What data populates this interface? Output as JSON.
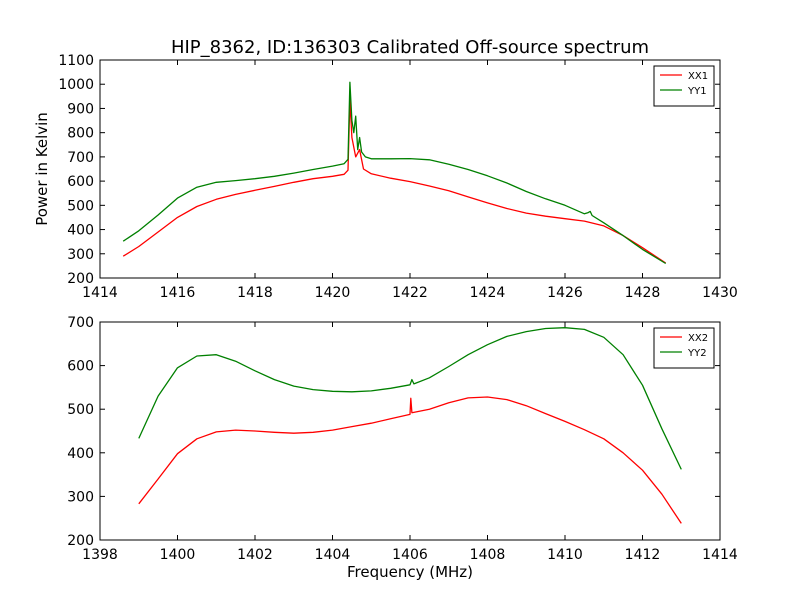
{
  "chart_data": [
    {
      "type": "line",
      "title": "HIP_8362, ID:136303 Calibrated Off-source spectrum",
      "xlabel": "",
      "ylabel": "Power in Kelvin",
      "xlim": [
        1414,
        1430
      ],
      "ylim": [
        200,
        1100
      ],
      "xticks": [
        "1414",
        "1416",
        "1418",
        "1420",
        "1422",
        "1424",
        "1426",
        "1428",
        "1430"
      ],
      "yticks": [
        "200",
        "300",
        "400",
        "500",
        "600",
        "700",
        "800",
        "900",
        "1000",
        "1100"
      ],
      "grid": false,
      "legend_position": "top-right",
      "series": [
        {
          "name": "XX1",
          "color": "#ff0000",
          "points": [
            [
              1414.6,
              290
            ],
            [
              1415.0,
              330
            ],
            [
              1415.5,
              390
            ],
            [
              1416.0,
              450
            ],
            [
              1416.5,
              495
            ],
            [
              1417.0,
              525
            ],
            [
              1417.5,
              545
            ],
            [
              1418.0,
              562
            ],
            [
              1418.5,
              578
            ],
            [
              1419.0,
              595
            ],
            [
              1419.5,
              610
            ],
            [
              1420.0,
              620
            ],
            [
              1420.3,
              628
            ],
            [
              1420.4,
              645
            ],
            [
              1420.45,
              935
            ],
            [
              1420.5,
              780
            ],
            [
              1420.55,
              740
            ],
            [
              1420.6,
              700
            ],
            [
              1420.7,
              730
            ],
            [
              1420.8,
              650
            ],
            [
              1421.0,
              630
            ],
            [
              1421.5,
              612
            ],
            [
              1422.0,
              598
            ],
            [
              1422.5,
              580
            ],
            [
              1423.0,
              560
            ],
            [
              1423.5,
              535
            ],
            [
              1424.0,
              510
            ],
            [
              1424.5,
              487
            ],
            [
              1425.0,
              468
            ],
            [
              1425.5,
              455
            ],
            [
              1426.0,
              445
            ],
            [
              1426.5,
              435
            ],
            [
              1427.0,
              415
            ],
            [
              1427.5,
              375
            ],
            [
              1428.0,
              325
            ],
            [
              1428.6,
              262
            ]
          ]
        },
        {
          "name": "YY1",
          "color": "#008000",
          "points": [
            [
              1414.6,
              352
            ],
            [
              1415.0,
              395
            ],
            [
              1415.5,
              460
            ],
            [
              1416.0,
              530
            ],
            [
              1416.5,
              575
            ],
            [
              1417.0,
              595
            ],
            [
              1417.5,
              602
            ],
            [
              1418.0,
              610
            ],
            [
              1418.5,
              620
            ],
            [
              1419.0,
              633
            ],
            [
              1419.5,
              648
            ],
            [
              1420.0,
              662
            ],
            [
              1420.3,
              672
            ],
            [
              1420.4,
              690
            ],
            [
              1420.45,
              1008
            ],
            [
              1420.5,
              850
            ],
            [
              1420.55,
              800
            ],
            [
              1420.6,
              868
            ],
            [
              1420.65,
              730
            ],
            [
              1420.7,
              780
            ],
            [
              1420.75,
              720
            ],
            [
              1420.85,
              700
            ],
            [
              1421.0,
              692
            ],
            [
              1421.5,
              692
            ],
            [
              1422.0,
              693
            ],
            [
              1422.5,
              688
            ],
            [
              1423.0,
              670
            ],
            [
              1423.5,
              648
            ],
            [
              1424.0,
              622
            ],
            [
              1424.5,
              592
            ],
            [
              1425.0,
              557
            ],
            [
              1425.5,
              527
            ],
            [
              1426.0,
              500
            ],
            [
              1426.5,
              465
            ],
            [
              1426.6,
              470
            ],
            [
              1426.65,
              475
            ],
            [
              1426.7,
              458
            ],
            [
              1427.0,
              428
            ],
            [
              1427.5,
              375
            ],
            [
              1428.0,
              318
            ],
            [
              1428.6,
              260
            ]
          ]
        }
      ]
    },
    {
      "type": "line",
      "title": "",
      "xlabel": "Frequency (MHz)",
      "ylabel": "",
      "xlim": [
        1398,
        1414
      ],
      "ylim": [
        200,
        700
      ],
      "xticks": [
        "1398",
        "1400",
        "1402",
        "1404",
        "1406",
        "1408",
        "1410",
        "1412",
        "1414"
      ],
      "yticks": [
        "200",
        "300",
        "400",
        "500",
        "600",
        "700"
      ],
      "grid": false,
      "legend_position": "top-right",
      "series": [
        {
          "name": "XX2",
          "color": "#ff0000",
          "points": [
            [
              1399.0,
              283
            ],
            [
              1399.5,
              340
            ],
            [
              1400.0,
              398
            ],
            [
              1400.5,
              432
            ],
            [
              1401.0,
              448
            ],
            [
              1401.5,
              452
            ],
            [
              1402.0,
              450
            ],
            [
              1402.5,
              447
            ],
            [
              1403.0,
              445
            ],
            [
              1403.5,
              447
            ],
            [
              1404.0,
              452
            ],
            [
              1404.5,
              460
            ],
            [
              1405.0,
              468
            ],
            [
              1405.5,
              478
            ],
            [
              1406.0,
              488
            ],
            [
              1406.02,
              525
            ],
            [
              1406.05,
              492
            ],
            [
              1406.5,
              500
            ],
            [
              1407.0,
              515
            ],
            [
              1407.5,
              526
            ],
            [
              1408.0,
              528
            ],
            [
              1408.5,
              522
            ],
            [
              1409.0,
              508
            ],
            [
              1409.5,
              490
            ],
            [
              1410.0,
              472
            ],
            [
              1410.5,
              453
            ],
            [
              1411.0,
              432
            ],
            [
              1411.5,
              400
            ],
            [
              1412.0,
              360
            ],
            [
              1412.5,
              305
            ],
            [
              1413.0,
              238
            ]
          ]
        },
        {
          "name": "YY2",
          "color": "#008000",
          "points": [
            [
              1399.0,
              433
            ],
            [
              1399.5,
              530
            ],
            [
              1400.0,
              595
            ],
            [
              1400.5,
              622
            ],
            [
              1401.0,
              625
            ],
            [
              1401.5,
              610
            ],
            [
              1402.0,
              588
            ],
            [
              1402.5,
              568
            ],
            [
              1403.0,
              553
            ],
            [
              1403.5,
              545
            ],
            [
              1404.0,
              541
            ],
            [
              1404.5,
              540
            ],
            [
              1405.0,
              542
            ],
            [
              1405.5,
              548
            ],
            [
              1406.0,
              556
            ],
            [
              1406.05,
              568
            ],
            [
              1406.1,
              558
            ],
            [
              1406.5,
              572
            ],
            [
              1407.0,
              598
            ],
            [
              1407.5,
              625
            ],
            [
              1408.0,
              648
            ],
            [
              1408.5,
              667
            ],
            [
              1409.0,
              678
            ],
            [
              1409.5,
              685
            ],
            [
              1410.0,
              687
            ],
            [
              1410.5,
              683
            ],
            [
              1411.0,
              665
            ],
            [
              1411.5,
              625
            ],
            [
              1412.0,
              555
            ],
            [
              1412.5,
              455
            ],
            [
              1413.0,
              362
            ]
          ]
        }
      ]
    }
  ]
}
